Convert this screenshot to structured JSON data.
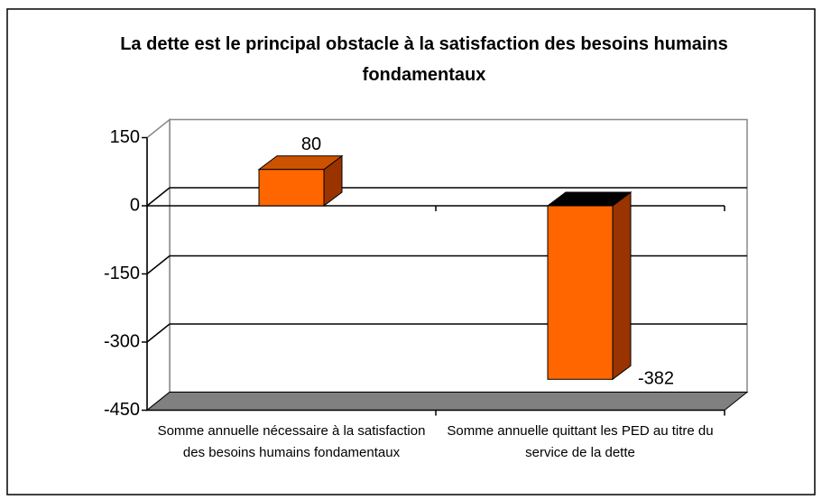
{
  "chart_data": {
    "type": "bar3d",
    "title": "La dette est le principal obstacle à la satisfaction des besoins humains fondamentaux",
    "categories": [
      "Somme annuelle nécessaire à la satisfaction des besoins humains fondamentaux",
      "Somme annuelle quittant les PED au titre du service de la dette"
    ],
    "values": [
      80,
      -382
    ],
    "color": "#ff6600",
    "ylim": [
      -450,
      150
    ],
    "yticks": [
      -450,
      -300,
      -150,
      0,
      150
    ],
    "grid": true
  }
}
